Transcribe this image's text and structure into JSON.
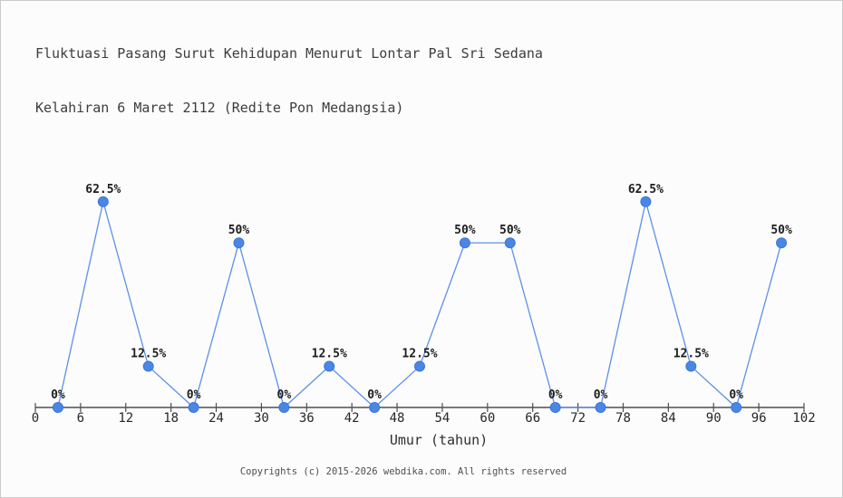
{
  "page": {
    "background": "#fcfcfc",
    "border_color": "#cbcbcb"
  },
  "header": {
    "title_line1": "Fluktuasi Pasang Surut Kehidupan Menurut Lontar Pal Sri Sedana",
    "title_line2": "Kelahiran 6 Maret 2112 (Redite Pon Medangsia)"
  },
  "chart_data": {
    "type": "line",
    "title": "Fluktuasi Pasang Surut Kehidupan Menurut Lontar Pal Sri Sedana Kelahiran 6 Maret 2112 (Redite Pon Medangsia)",
    "xlabel": "Umur (tahun)",
    "ylabel": "",
    "x": [
      3,
      9,
      15,
      21,
      27,
      33,
      39,
      45,
      51,
      57,
      63,
      69,
      75,
      81,
      87,
      93,
      99
    ],
    "values": [
      0,
      62.5,
      12.5,
      0,
      50,
      0,
      12.5,
      0,
      12.5,
      50,
      50,
      0,
      0,
      62.5,
      12.5,
      0,
      50
    ],
    "point_labels": [
      "0%",
      "62.5%",
      "12.5%",
      "0%",
      "50%",
      "0%",
      "12.5%",
      "0%",
      "12.5%",
      "50%",
      "50%",
      "0%",
      "0%",
      "62.5%",
      "12.5%",
      "0%",
      "50%"
    ],
    "x_ticks": [
      0,
      6,
      12,
      18,
      24,
      30,
      36,
      42,
      48,
      54,
      60,
      66,
      72,
      78,
      84,
      90,
      96,
      102
    ],
    "x_range": [
      0,
      102
    ],
    "y_range": [
      0,
      96
    ],
    "grid": false,
    "legend": false,
    "line_color": "#5c90e8",
    "marker_color": "#4a86e4",
    "marker_edge_color": "#3a76d8",
    "axis_color": "#4f4f4f"
  },
  "footer": {
    "copyright": "Copyrights (c) 2015-2026 webdika.com. All rights reserved"
  }
}
